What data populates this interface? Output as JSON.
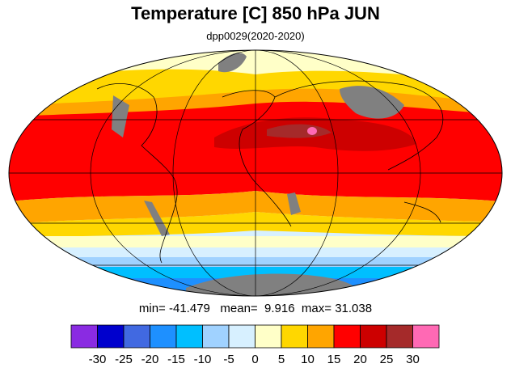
{
  "title": "Temperature [C] 850 hPa JUN",
  "subtitle": "dpp0029(2020-2020)",
  "stats": {
    "min_label": "min=",
    "min": "-41.479",
    "mean_label": "mean=",
    "mean": "9.916",
    "max_label": "max=",
    "max": "31.038"
  },
  "colorbar": {
    "colors": [
      "#8a2be2",
      "#0000cd",
      "#4169e1",
      "#1e90ff",
      "#00bfff",
      "#a0d2ff",
      "#d7f0ff",
      "#ffffc8",
      "#ffd700",
      "#ffa500",
      "#ff0000",
      "#cd0000",
      "#a52a2a",
      "#ff69b4"
    ],
    "levels": [
      "-30",
      "-25",
      "-20",
      "-15",
      "-10",
      "-5",
      "0",
      "5",
      "10",
      "15",
      "20",
      "25",
      "30"
    ]
  },
  "map": {
    "projection": "Mollweide",
    "missing_color": "#808080",
    "graticule": true,
    "coastlines": true
  }
}
